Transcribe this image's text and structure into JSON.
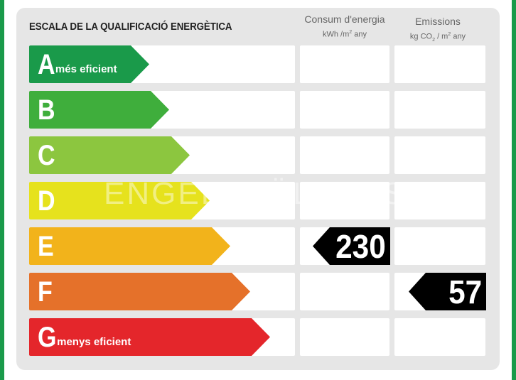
{
  "scale_title": "ESCALA DE LA QUALIFICACIÓ ENERGÈTICA",
  "consumption": {
    "heading": "Consum d'energia",
    "unit_prefix": "kWh /m",
    "unit_exp": "2",
    "unit_suffix": " any",
    "value": "230",
    "rating": "E"
  },
  "emissions": {
    "heading": "Emissions",
    "unit_prefix": "kg CO",
    "unit_sub": "2",
    "unit_mid": " / m",
    "unit_exp": "2",
    "unit_suffix": " any",
    "value": "57",
    "rating": "F"
  },
  "classes": [
    {
      "letter": "A",
      "note": "més eficient",
      "color": "#1a9a4a"
    },
    {
      "letter": "B",
      "note": "",
      "color": "#3fae3c"
    },
    {
      "letter": "C",
      "note": "",
      "color": "#8cc63f"
    },
    {
      "letter": "D",
      "note": "",
      "color": "#e6e21d"
    },
    {
      "letter": "E",
      "note": "",
      "color": "#f2b31b"
    },
    {
      "letter": "F",
      "note": "",
      "color": "#e5712a"
    },
    {
      "letter": "G",
      "note": "menys eficient",
      "color": "#e4262b"
    }
  ],
  "watermark": "ENGEL&VÖLKERS"
}
